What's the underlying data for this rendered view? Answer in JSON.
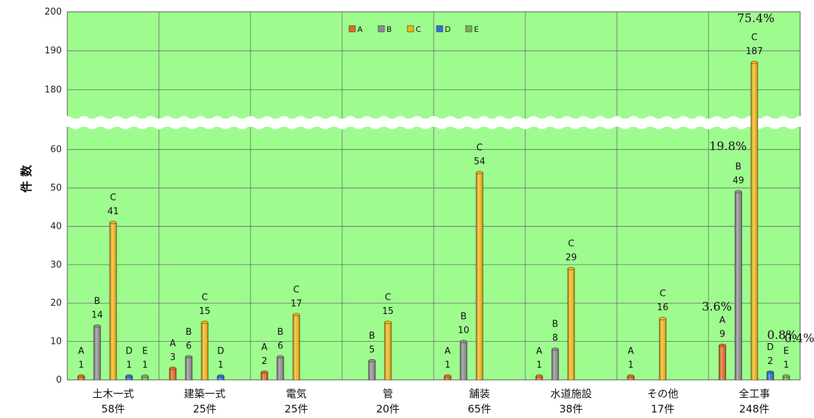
{
  "chart_data": {
    "type": "bar",
    "ylabel": "件 数",
    "ylim": [
      0,
      200
    ],
    "axis_break": [
      65,
      171
    ],
    "y_ticks": [
      0,
      10,
      20,
      30,
      40,
      50,
      60,
      180,
      190,
      200
    ],
    "categories": [
      "土木一式",
      "建築一式",
      "電気",
      "管",
      "舗装",
      "水道施設",
      "その他",
      "全工事"
    ],
    "category_totals": [
      "58件",
      "25件",
      "25件",
      "20件",
      "65件",
      "38件",
      "17件",
      "248件"
    ],
    "series": [
      {
        "name": "A",
        "color": "#e06a1f",
        "values": [
          1,
          3,
          2,
          null,
          1,
          1,
          1,
          9
        ]
      },
      {
        "name": "B",
        "color": "#8c8c8c",
        "values": [
          14,
          6,
          6,
          5,
          10,
          8,
          null,
          49
        ]
      },
      {
        "name": "C",
        "color": "#f2b311",
        "values": [
          41,
          15,
          17,
          15,
          54,
          29,
          16,
          187
        ]
      },
      {
        "name": "D",
        "color": "#2f6fd1",
        "values": [
          1,
          1,
          null,
          null,
          null,
          null,
          null,
          2
        ]
      },
      {
        "name": "E",
        "color": "#7bb04a",
        "values": [
          1,
          null,
          null,
          null,
          null,
          null,
          null,
          1
        ]
      }
    ],
    "percent_labels": {
      "category": "全工事",
      "values": {
        "A": "3.6%",
        "B": "19.8%",
        "C": "75.4%",
        "D": "0.8%",
        "E": "0.4%"
      }
    },
    "grid": true,
    "legend_position": "top-center",
    "plot_background": "#9efc8e"
  }
}
